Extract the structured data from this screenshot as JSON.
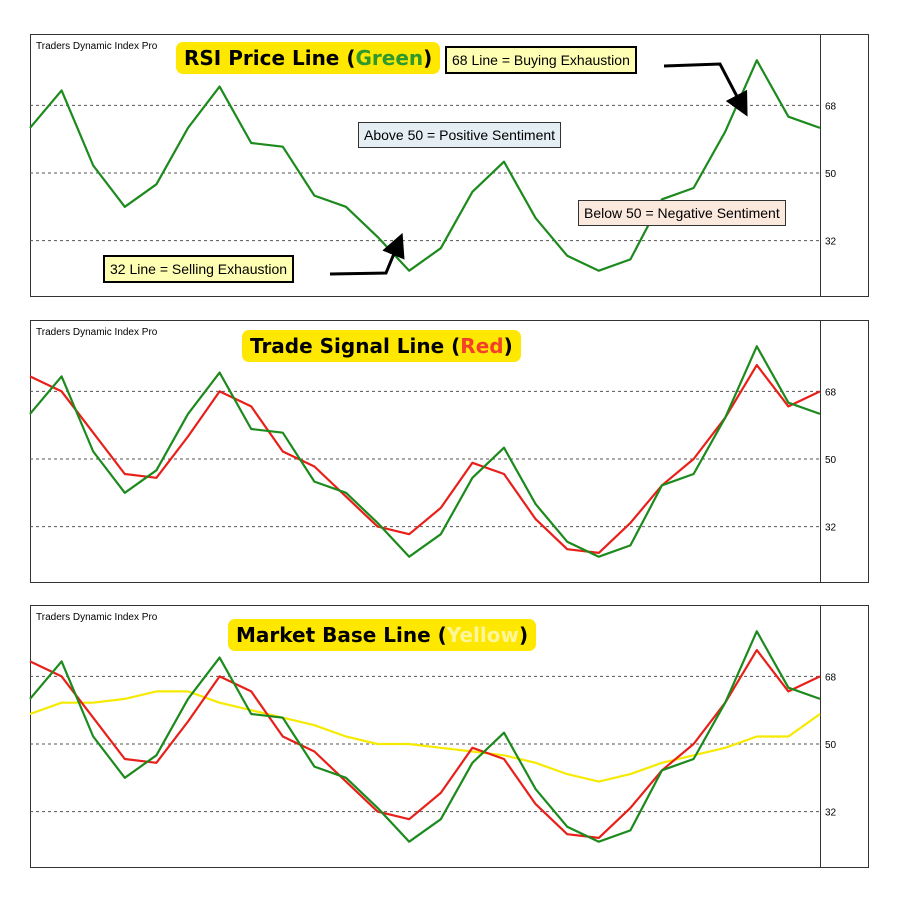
{
  "colors": {
    "rsi": "#1C8A1C",
    "signal": "#E8201A",
    "base": "#F5EA00",
    "grid": "#555555"
  },
  "panels": [
    {
      "indicator_name": "Traders Dynamic Index Pro",
      "title_prefix": "RSI Price Line (",
      "title_word": "Green",
      "title_suffix": ")",
      "title_word_color": "#2E9A2E"
    },
    {
      "indicator_name": "Traders Dynamic Index Pro",
      "title_prefix": "Trade Signal Line (",
      "title_word": "Red",
      "title_suffix": ")",
      "title_word_color": "#F4402A"
    },
    {
      "indicator_name": "Traders Dynamic Index Pro",
      "title_prefix": "Market Base Line (",
      "title_word": "Yellow",
      "title_suffix": ")",
      "title_word_color": "#FFF59A"
    }
  ],
  "annotations": {
    "buying_exhaustion": "68 Line = Buying Exhaustion",
    "positive_sentiment": "Above 50 = Positive Sentiment",
    "negative_sentiment": "Below 50 = Negative Sentiment",
    "selling_exhaustion": "32 Line = Selling Exhaustion"
  },
  "chart_data": [
    {
      "type": "line",
      "title": "RSI Price Line (Green)",
      "levels": [
        68,
        50,
        32
      ],
      "ylim": [
        17,
        87
      ],
      "x": [
        0,
        4,
        8,
        12,
        16,
        20,
        24,
        28,
        32,
        36,
        40,
        44,
        48,
        52,
        56,
        60,
        64,
        68,
        72,
        76,
        80,
        84,
        88,
        92,
        96,
        100
      ],
      "series": [
        {
          "name": "RSI Price Line",
          "color": "#1C8A1C",
          "values": [
            62,
            72,
            52,
            41,
            47,
            62,
            73,
            58,
            57,
            44,
            41,
            33,
            24,
            30,
            45,
            53,
            38,
            28,
            24,
            27,
            43,
            46,
            61,
            80,
            65,
            62
          ]
        }
      ]
    },
    {
      "type": "line",
      "title": "Trade Signal Line (Red)",
      "levels": [
        68,
        50,
        32
      ],
      "ylim": [
        17,
        87
      ],
      "x": [
        0,
        4,
        8,
        12,
        16,
        20,
        24,
        28,
        32,
        36,
        40,
        44,
        48,
        52,
        56,
        60,
        64,
        68,
        72,
        76,
        80,
        84,
        88,
        92,
        96,
        100
      ],
      "series": [
        {
          "name": "RSI Price Line",
          "color": "#1C8A1C",
          "values": [
            62,
            72,
            52,
            41,
            47,
            62,
            73,
            58,
            57,
            44,
            41,
            33,
            24,
            30,
            45,
            53,
            38,
            28,
            24,
            27,
            43,
            46,
            61,
            80,
            65,
            62
          ]
        },
        {
          "name": "Trade Signal Line",
          "color": "#E8201A",
          "values": [
            72,
            68,
            57,
            46,
            45,
            56,
            68,
            64,
            52,
            48,
            40,
            32,
            30,
            37,
            49,
            46,
            34,
            26,
            25,
            33,
            43,
            50,
            61,
            75,
            64,
            68
          ]
        }
      ]
    },
    {
      "type": "line",
      "title": "Market Base Line (Yellow)",
      "levels": [
        68,
        50,
        32
      ],
      "ylim": [
        17,
        87
      ],
      "x": [
        0,
        4,
        8,
        12,
        16,
        20,
        24,
        28,
        32,
        36,
        40,
        44,
        48,
        52,
        56,
        60,
        64,
        68,
        72,
        76,
        80,
        84,
        88,
        92,
        96,
        100
      ],
      "series": [
        {
          "name": "RSI Price Line",
          "color": "#1C8A1C",
          "values": [
            62,
            72,
            52,
            41,
            47,
            62,
            73,
            58,
            57,
            44,
            41,
            33,
            24,
            30,
            45,
            53,
            38,
            28,
            24,
            27,
            43,
            46,
            61,
            80,
            65,
            62
          ]
        },
        {
          "name": "Trade Signal Line",
          "color": "#E8201A",
          "values": [
            72,
            68,
            57,
            46,
            45,
            56,
            68,
            64,
            52,
            48,
            40,
            32,
            30,
            37,
            49,
            46,
            34,
            26,
            25,
            33,
            43,
            50,
            61,
            75,
            64,
            68
          ]
        },
        {
          "name": "Market Base Line",
          "color": "#F5EA00",
          "values": [
            58,
            61,
            61,
            62,
            64,
            64,
            61,
            59,
            57,
            55,
            52,
            50,
            50,
            49,
            48,
            47,
            45,
            42,
            40,
            42,
            45,
            47,
            49,
            52,
            52,
            58
          ]
        }
      ]
    }
  ]
}
